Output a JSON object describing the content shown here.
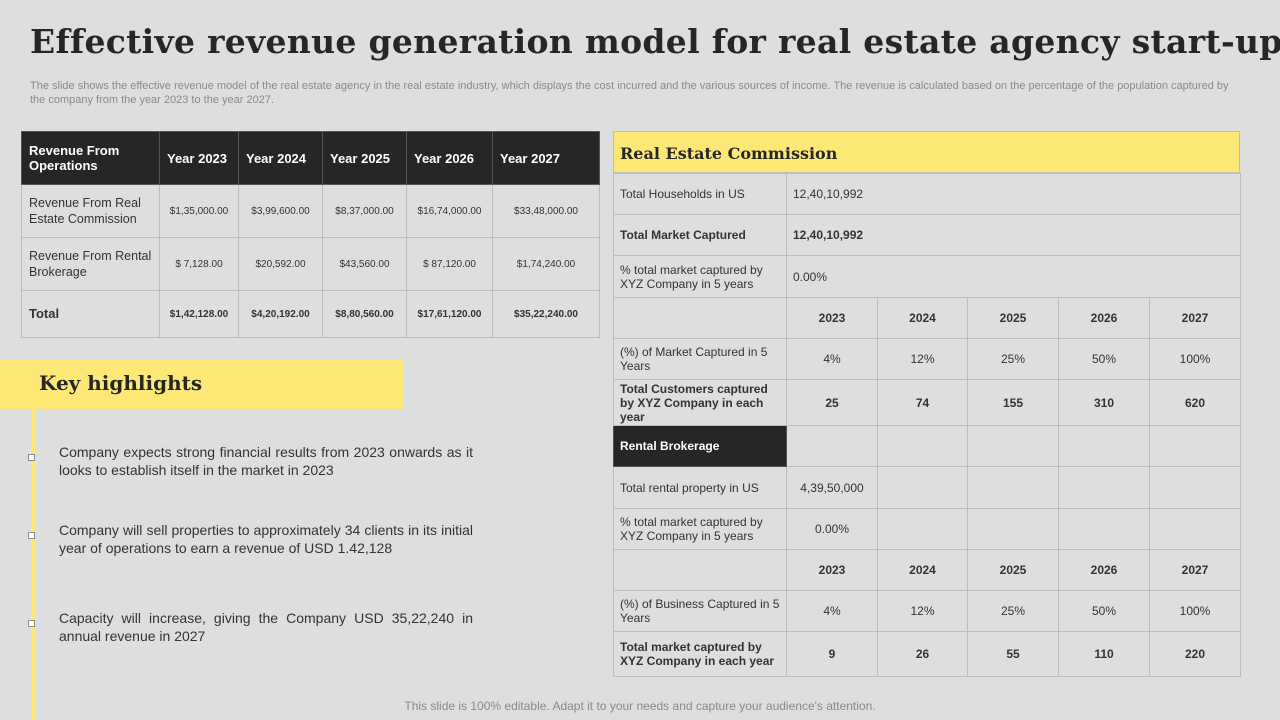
{
  "title": "Effective revenue generation model for real estate agency start-up",
  "subtitle": "The slide shows the effective revenue model of the real estate agency in the real estate industry, which displays the cost incurred and the various sources of income. The revenue is calculated based on the percentage of the population captured by the company from the year 2023 to the year 2027.",
  "revenue_table": {
    "headers": [
      "Revenue From Operations",
      "Year 2023",
      "Year 2024",
      "Year 2025",
      "Year 2026",
      "Year 2027"
    ],
    "rows": [
      {
        "label": "Revenue  From Real Estate Commission",
        "values": [
          "$1,35,000.00",
          "$3,99,600.00",
          "$8,37,000.00",
          "$16,74,000.00",
          "$33,48,000.00"
        ]
      },
      {
        "label": "Revenue  From Rental Brokerage",
        "values": [
          "$ 7,128.00",
          "$20,592.00",
          "$43,560.00",
          "$ 87,120.00",
          "$1,74,240.00"
        ]
      },
      {
        "label": "Total",
        "values": [
          "$1,42,128.00",
          "$4,20,192.00",
          "$8,80,560.00",
          "$17,61,120.00",
          "$35,22,240.00"
        ]
      }
    ]
  },
  "key_highlights": {
    "title": "Key highlights",
    "items": [
      "Company expects strong financial results from 2023 onwards as it looks to establish itself in the market in 2023",
      "Company will sell properties to approximately 34 clients in its initial year of operations to earn a revenue of USD 1.42,128",
      "Capacity will increase, giving the Company USD 35,22,240 in annual revenue in 2027"
    ]
  },
  "commission": {
    "heading": "Real Estate Commission",
    "households_label": "Total Households in US",
    "households_value": "12,40,10,992",
    "market_captured_label": "Total Market Captured",
    "market_captured_value": "12,40,10,992",
    "pct_label": "% total market captured by XYZ  Company in 5 years",
    "pct_value": "0.00%",
    "years": [
      "2023",
      "2024",
      "2025",
      "2026",
      "2027"
    ],
    "share_label": "(%) of Market Captured in 5 Years",
    "share_values": [
      "4%",
      "12%",
      "25%",
      "50%",
      "100%"
    ],
    "customers_label": "Total Customers captured by XYZ Company in each year",
    "customers_values": [
      "25",
      "74",
      "155",
      "310",
      "620"
    ]
  },
  "rental": {
    "heading": "Rental Brokerage",
    "property_label": "Total rental property in US",
    "property_value": "4,39,50,000",
    "pct_label": "% total market captured by XYZ  Company in 5 years",
    "pct_value": "0.00%",
    "years": [
      "2023",
      "2024",
      "2025",
      "2026",
      "2027"
    ],
    "share_label": "(%) of Business Captured in 5 Years",
    "share_values": [
      "4%",
      "12%",
      "25%",
      "50%",
      "100%"
    ],
    "captured_label": "Total market captured by XYZ Company in each year",
    "captured_values": [
      "9",
      "26",
      "55",
      "110",
      "220"
    ]
  },
  "colors": {
    "accent": "#fde876",
    "dark": "#262626",
    "background": "#dedede"
  },
  "footer": "This slide is 100% editable. Adapt it to your needs and capture your audience's attention."
}
